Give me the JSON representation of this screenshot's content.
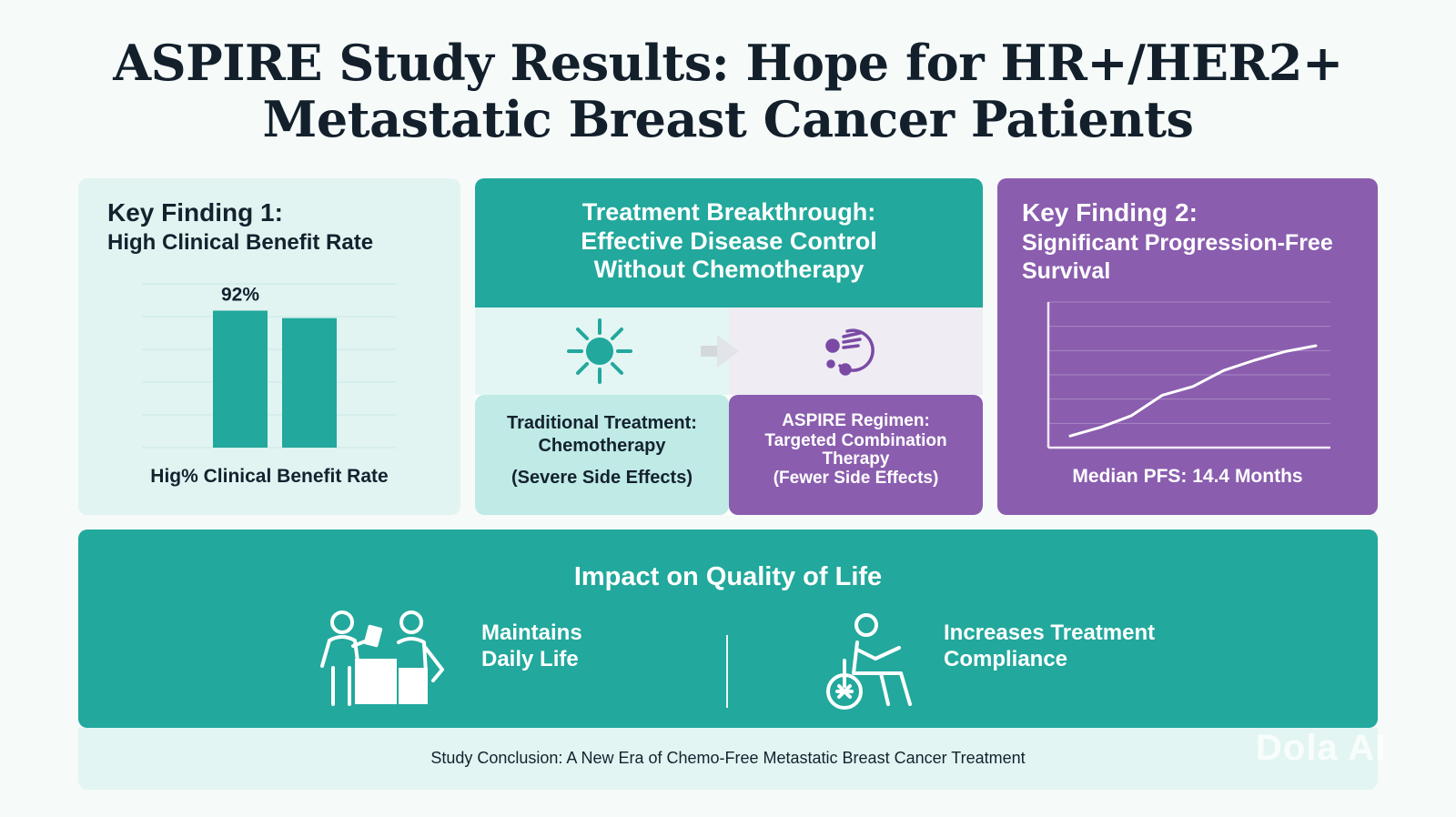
{
  "title": {
    "line1": "ASPIRE Study Results: Hope for HR+/HER2+",
    "line2": "Metastatic Breast Cancer Patients"
  },
  "key_finding_1": {
    "heading": "Key Finding 1:",
    "subheading": "High Clinical Benefit Rate",
    "bar_label": "92%",
    "caption": "Hig% Clinical Benefit Rate"
  },
  "treatment": {
    "heading_line1": "Treatment Breakthrough:",
    "heading_line2": "Effective Disease Control",
    "heading_line3": "Without Chemotherapy",
    "traditional_line1": "Traditional Treatment:",
    "traditional_line2": "Chemotherapy",
    "traditional_line3": "(Severe Side Effects)",
    "aspire_line1": "ASPIRE Regimen:",
    "aspire_line2": "Targeted Combination",
    "aspire_line3": "Therapy",
    "aspire_line4": "(Fewer Side Effects)"
  },
  "key_finding_2": {
    "heading": "Key Finding 2:",
    "subheading": "Significant Progression-Free Survival",
    "caption": "Median PFS: 14.4 Months"
  },
  "impact": {
    "title": "Impact on Quality of Life",
    "item1_line1": "Maintains",
    "item1_line2": "Daily Life",
    "item2_line1": "Increases Treatment",
    "item2_line2": "Compliance"
  },
  "conclusion": "Study Conclusion: A New Era of Chemo-Free Metastatic Breast Cancer Treatment",
  "watermark": "Dola AI",
  "colors": {
    "teal": "#22a89c",
    "purple": "#8a5dae",
    "light_teal": "#e1f4f2"
  },
  "chart_data": [
    {
      "type": "bar",
      "categories": [
        "",
        ""
      ],
      "values": [
        92,
        87
      ],
      "data_labels": [
        "92%",
        ""
      ],
      "ylim": [
        0,
        110
      ],
      "grid": true
    },
    {
      "type": "line",
      "x": [
        0,
        1,
        2,
        3,
        4,
        5,
        6,
        7,
        8
      ],
      "y": [
        8,
        14,
        22,
        36,
        42,
        53,
        60,
        66,
        70
      ],
      "ylim": [
        0,
        100
      ],
      "grid": true
    }
  ]
}
